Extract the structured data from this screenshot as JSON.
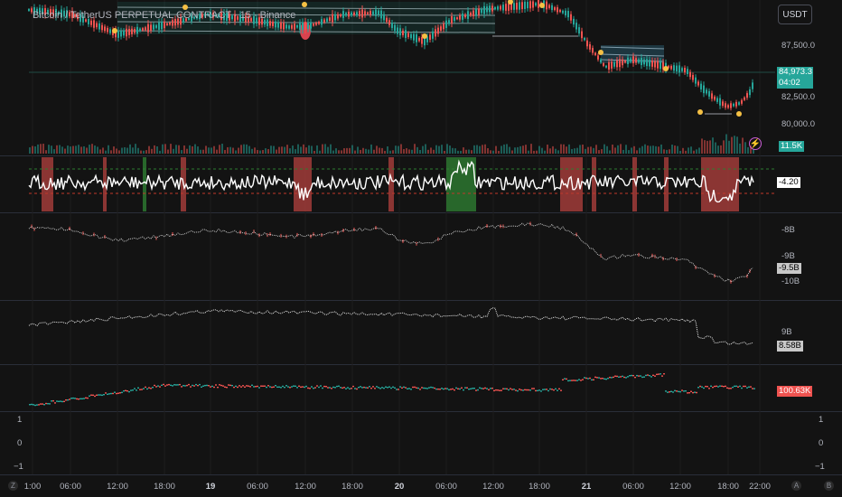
{
  "header": {
    "title": "Bitcoin / TetherUS PERPETUAL CONTRACT · 15 · Binance",
    "currency": "USDT"
  },
  "icons": {
    "lightning": "lightning-icon",
    "go_to_realtime": "chevrons-right-icon"
  },
  "colors": {
    "up": "#26a69a",
    "down": "#ef5350",
    "signal": "#f5c044",
    "background": "#131313"
  },
  "main_pane": {
    "price_axis": [
      "87,500.0",
      "82,500.0",
      "80,000.0"
    ],
    "last_price": "84,973.3",
    "countdown": "04:02",
    "volume_tag": "11.5K"
  },
  "oscillator_pane": {
    "value_tag": "-4.20"
  },
  "pane3": {
    "axis": [
      "-8B",
      "-9B",
      "-10B"
    ],
    "value_tag": "-9.5B"
  },
  "pane4": {
    "axis": [
      "9B"
    ],
    "value_tag": "8.58B"
  },
  "pane5": {
    "value_tag": "100.63K"
  },
  "pane6": {
    "axis": [
      "1",
      "0",
      "−1"
    ]
  },
  "time_axis": [
    {
      "t": "1:00",
      "bold": false
    },
    {
      "t": "06:00",
      "bold": false
    },
    {
      "t": "12:00",
      "bold": false
    },
    {
      "t": "18:00",
      "bold": false
    },
    {
      "t": "19",
      "bold": true
    },
    {
      "t": "06:00",
      "bold": false
    },
    {
      "t": "12:00",
      "bold": false
    },
    {
      "t": "18:00",
      "bold": false
    },
    {
      "t": "20",
      "bold": true
    },
    {
      "t": "06:00",
      "bold": false
    },
    {
      "t": "12:00",
      "bold": false
    },
    {
      "t": "18:00",
      "bold": false
    },
    {
      "t": "21",
      "bold": true
    },
    {
      "t": "06:00",
      "bold": false
    },
    {
      "t": "12:00",
      "bold": false
    },
    {
      "t": "18:00",
      "bold": false
    },
    {
      "t": "22:00",
      "bold": false
    }
  ],
  "corner_buttons": [
    "Z",
    "A",
    "B"
  ]
}
